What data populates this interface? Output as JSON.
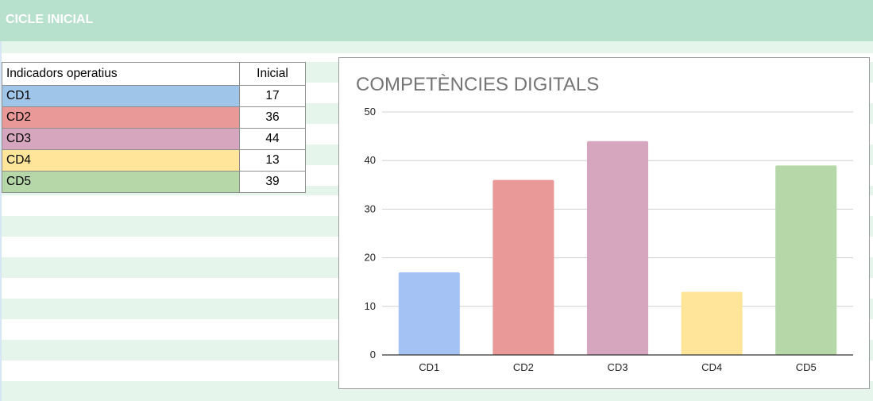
{
  "header": {
    "title": "CICLE INICIAL"
  },
  "table": {
    "header": [
      "Indicadors operatius",
      "Inicial"
    ],
    "rows": [
      {
        "label": "CD1",
        "value": "17",
        "color": "#9fc5e8"
      },
      {
        "label": "CD2",
        "value": "36",
        "color": "#ea9999"
      },
      {
        "label": "CD3",
        "value": "44",
        "color": "#d5a6bd"
      },
      {
        "label": "CD4",
        "value": "13",
        "color": "#ffe599"
      },
      {
        "label": "CD5",
        "value": "39",
        "color": "#b6d7a8"
      }
    ]
  },
  "chart_data": {
    "type": "bar",
    "title": "COMPETÈNCIES DIGITALS",
    "categories": [
      "CD1",
      "CD2",
      "CD3",
      "CD4",
      "CD5"
    ],
    "values": [
      17,
      36,
      44,
      13,
      39
    ],
    "colors": [
      "#a4c2f4",
      "#ea9999",
      "#d5a6bd",
      "#ffe599",
      "#b6d7a8"
    ],
    "ylim": [
      0,
      50
    ],
    "yticks": [
      0,
      10,
      20,
      30,
      40,
      50
    ],
    "grid": true,
    "xlabel": "",
    "ylabel": ""
  },
  "colors": {
    "header": "#b7e1cd",
    "stripe": "#e6f5ec"
  }
}
